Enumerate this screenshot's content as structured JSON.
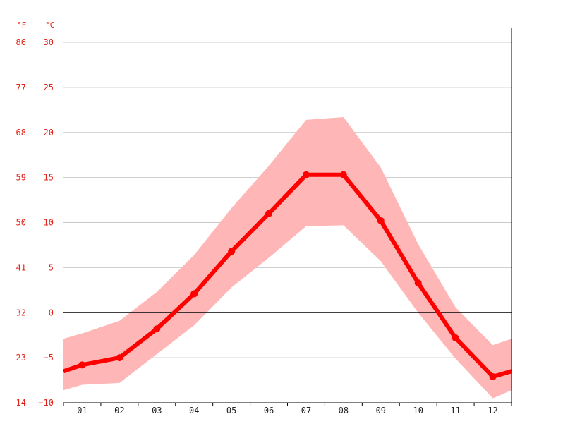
{
  "chart_data": {
    "type": "line",
    "categories": [
      "01",
      "02",
      "03",
      "04",
      "05",
      "06",
      "07",
      "08",
      "09",
      "10",
      "11",
      "12"
    ],
    "series": [
      {
        "values": [
          -5.8,
          -5.0,
          -1.8,
          2.1,
          6.8,
          11.0,
          15.3,
          15.3,
          10.2,
          3.3,
          -2.8,
          -7.1
        ]
      }
    ],
    "band": {
      "max": [
        -2.3,
        -0.9,
        2.3,
        6.4,
        11.6,
        16.3,
        21.4,
        21.7,
        16.1,
        7.6,
        0.6,
        -3.6
      ],
      "min": [
        -8.0,
        -7.8,
        -4.6,
        -1.4,
        2.8,
        6.1,
        9.6,
        9.7,
        5.7,
        0.0,
        -5.1,
        -9.5
      ]
    },
    "y_left_unit": "°F",
    "y_right_unit": "°C",
    "yticks_c": [
      "30",
      "25",
      "20",
      "15",
      "10",
      "5",
      "0",
      "−5",
      "−10"
    ],
    "yticks_f": [
      "86",
      "77",
      "68",
      "59",
      "50",
      "41",
      "32",
      "23",
      "14"
    ],
    "ylim": [
      -10,
      31.5
    ],
    "edge_values": {
      "start": -6.5,
      "end": -6.5
    },
    "band_edge": {
      "start_max": -2.9,
      "start_min": -8.6,
      "end_max": -2.9,
      "end_min": -8.6
    },
    "grid": true,
    "colors": {
      "line": "#ff0000",
      "band": "#ffb6b6",
      "grid": "#c8c8c8",
      "zero": "#000000",
      "tick_text": "#e2231a"
    }
  }
}
